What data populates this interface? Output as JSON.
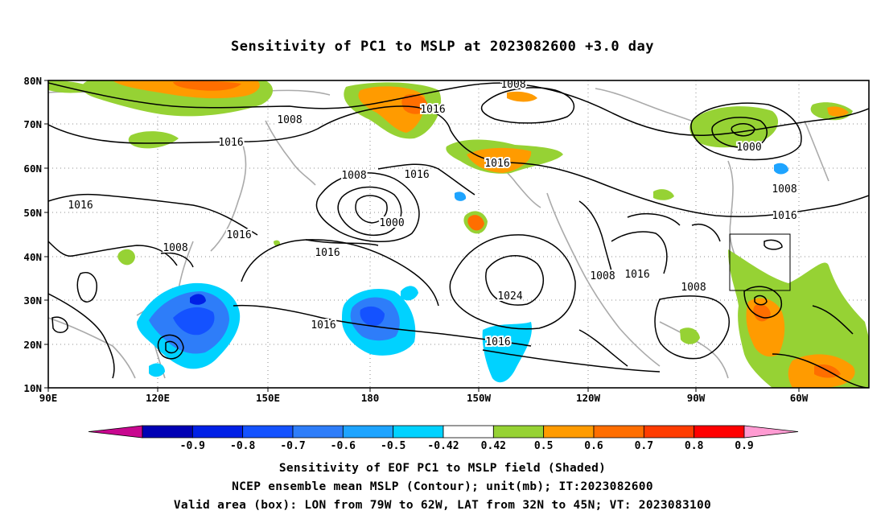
{
  "title": "Sensitivity of PC1 to MSLP at 2023082600 +3.0 day",
  "lon_labels": [
    "90E",
    "120E",
    "150E",
    "180",
    "150W",
    "120W",
    "90W",
    "60W"
  ],
  "lat_labels": [
    "80N",
    "70N",
    "60N",
    "50N",
    "40N",
    "30N",
    "20N",
    "10N"
  ],
  "contour_labels": [
    "1008",
    "1016",
    "1008",
    "1016",
    "1008",
    "1016",
    "1016",
    "1016",
    "1008",
    "1000",
    "1016",
    "1000",
    "1008",
    "1016",
    "1016",
    "1016",
    "1024",
    "1008",
    "1016",
    "1008",
    "1016"
  ],
  "colorbar": {
    "tick_labels": [
      "-0.9",
      "-0.8",
      "-0.7",
      "-0.6",
      "-0.5",
      "-0.42",
      "0.42",
      "0.5",
      "0.6",
      "0.7",
      "0.8",
      "0.9"
    ],
    "colors": [
      "#c8078f",
      "#0000b4",
      "#0020e6",
      "#1452ff",
      "#2e7df9",
      "#1ea4ff",
      "#00d2ff",
      "#ffffff",
      "#96d234",
      "#ff9b00",
      "#ff6e00",
      "#ff3c00",
      "#ff0000",
      "#ff9bd2"
    ]
  },
  "notes": [
    "Sensitivity of EOF PC1 to MSLP field (Shaded)",
    "NCEP ensemble mean MSLP (Contour); unit(mb); IT:2023082600",
    "Valid area (box): LON from 79W to 62W, LAT from 32N to 45N; VT: 2023083100"
  ]
}
